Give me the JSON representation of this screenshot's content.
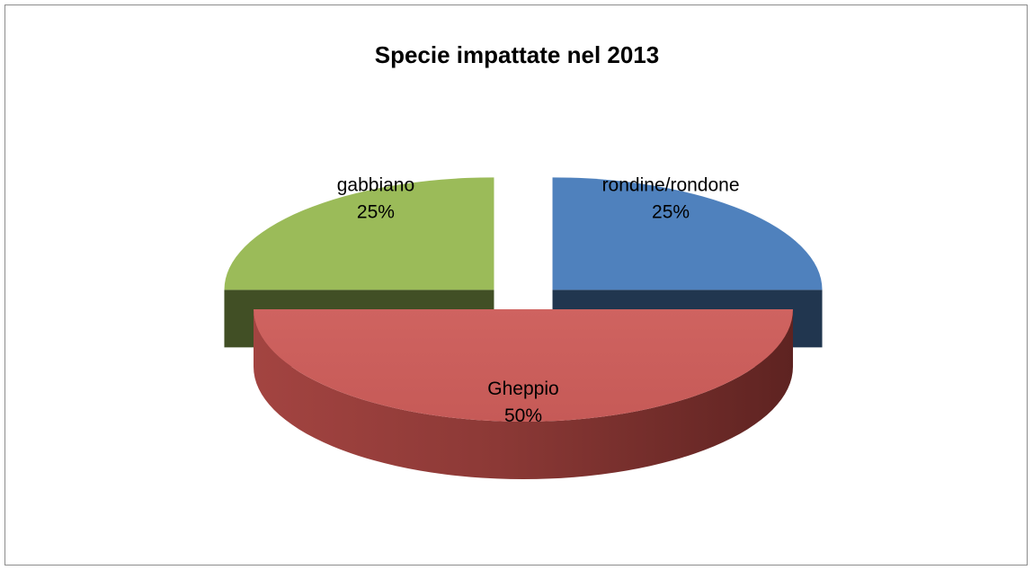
{
  "chart_data": {
    "type": "pie",
    "title": "Specie impattate nel 2013",
    "slices": [
      {
        "label": "rondine/rondone",
        "value": 25,
        "pct_label": "25%",
        "color": "#4f81bd",
        "exploded": true
      },
      {
        "label": "Gheppio",
        "value": 50,
        "pct_label": "50%",
        "color": "#c0504d",
        "exploded": false
      },
      {
        "label": "gabbiano",
        "value": 25,
        "pct_label": "25%",
        "color": "#9bbb59",
        "exploded": true
      }
    ],
    "legend": "none",
    "style": "3d-exploded"
  }
}
